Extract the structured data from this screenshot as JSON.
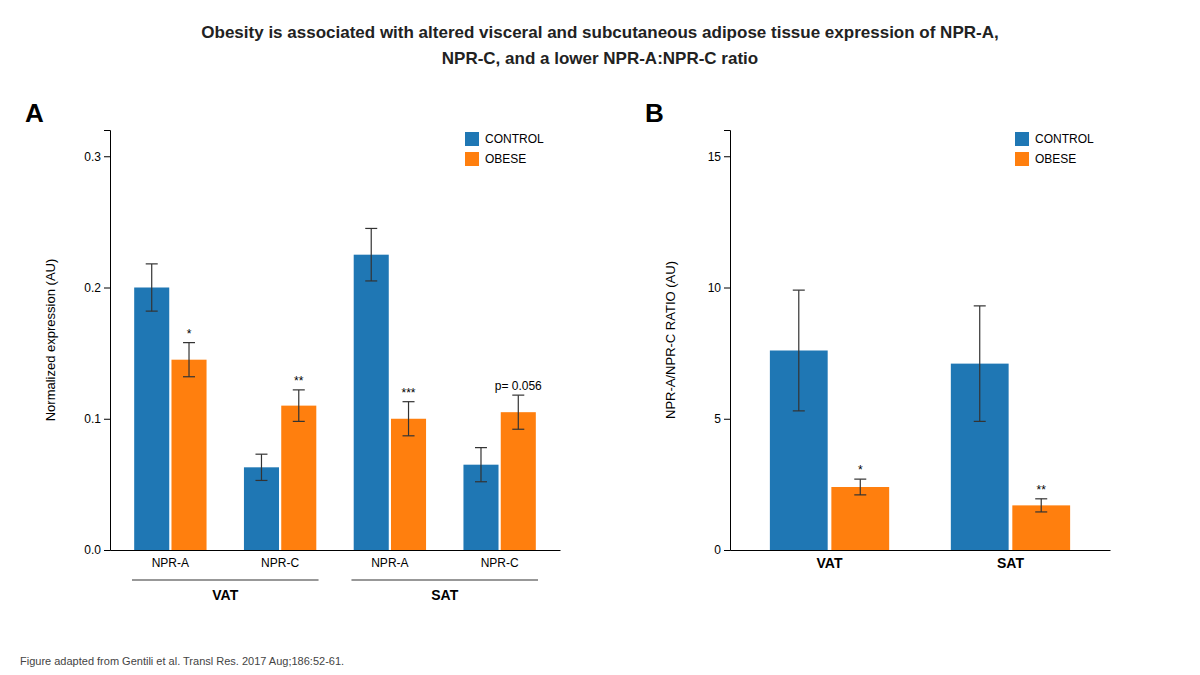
{
  "title": [
    "Obesity is associated with altered visceral and subcutaneous adipose tissue expression of NPR-A,",
    "NPR-C, and a lower NPR-A:NPR-C ratio"
  ],
  "caption": "Figure adapted from Gentili et al. Transl Res. 2017 Aug;186:52-61.",
  "chart_data": [
    {
      "type": "bar",
      "label": "A",
      "ylabel": "Normalized expression (AU)",
      "categories": [
        "NPR-A",
        "NPR-C",
        "NPR-A",
        "NPR-C"
      ],
      "group_labels": [
        "VAT",
        "SAT"
      ],
      "series": [
        {
          "name": "CONTROL",
          "values": [
            0.2,
            0.063,
            0.225,
            0.065
          ],
          "errors": [
            0.018,
            0.01,
            0.02,
            0.013
          ]
        },
        {
          "name": "OBESE",
          "values": [
            0.145,
            0.11,
            0.1,
            0.105
          ],
          "errors": [
            0.013,
            0.012,
            0.013,
            0.013
          ],
          "annotations": [
            "*",
            "**",
            "***",
            "p= 0.056"
          ]
        }
      ],
      "ylim": [
        0.0,
        0.32
      ],
      "yticks": [
        {
          "value": 0.0,
          "label": "0.0"
        },
        0.1,
        0.2,
        0.3
      ],
      "grid": false,
      "legend": "upper right"
    },
    {
      "type": "bar",
      "label": "B",
      "ylabel": "NPR-A/NPR-C RATIO (AU)",
      "categories": [
        "VAT",
        "SAT"
      ],
      "series": [
        {
          "name": "CONTROL",
          "values": [
            7.6,
            7.1
          ],
          "errors": [
            2.3,
            2.2
          ]
        },
        {
          "name": "OBESE",
          "values": [
            2.4,
            1.7
          ],
          "errors": [
            0.3,
            0.25
          ],
          "annotations": [
            "*",
            "**"
          ]
        }
      ],
      "ylim": [
        0,
        16
      ],
      "yticks": [
        0,
        5,
        10,
        15
      ],
      "grid": false,
      "legend": "upper right"
    }
  ]
}
